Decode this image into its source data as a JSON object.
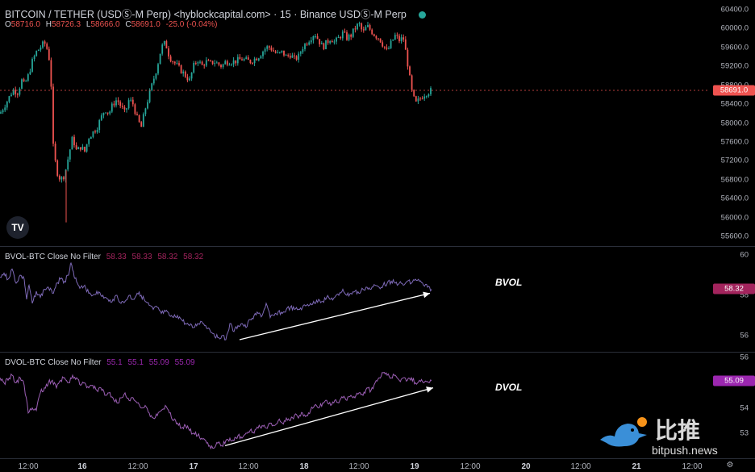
{
  "header": {
    "symbol": "BITCOIN / TETHER (USDⓈ-M Perp) <hyblockcapital.com> · 15 · Binance USDⓈ-M Perp",
    "ohlc": {
      "o_label": "O",
      "o": "58716.0",
      "h_label": "H",
      "h": "58726.3",
      "l_label": "L",
      "l": "58666.0",
      "c_label": "C",
      "c": "58691.0",
      "chg": "-25.0 (-0.04%)"
    }
  },
  "colors": {
    "up": "#26a69a",
    "down": "#ef5350",
    "bvol": "#7e6ab8",
    "dvol": "#9c5fb5",
    "price_line": "#ef5350",
    "bvol_tag": "#a3245d",
    "dvol_tag": "#9c27b0",
    "arrow": "#ffffff"
  },
  "icons": {
    "logo": "tradingview-logo-icon",
    "gear": "settings-icon",
    "bird": "bitpush-bird-icon"
  },
  "logo_text": "TV",
  "watermark": {
    "cn": "比推",
    "en": "bitpush.news"
  },
  "chart_data": [
    {
      "type": "candlestick",
      "title": "BITCOIN / TETHER (USDⓈ-M Perp) 15",
      "ylim": [
        55400,
        60600
      ],
      "yticks": [
        60400,
        60000,
        59600,
        59200,
        58800,
        58400,
        58000,
        57600,
        57200,
        56800,
        56400,
        56000,
        55600
      ],
      "last_price": 58691.0,
      "last_price_label": "58691.0",
      "close_path": {
        "x": [
          0,
          5,
          10,
          16,
          22,
          27,
          30,
          35,
          40,
          45,
          50,
          55,
          60,
          63,
          66,
          70,
          75,
          80,
          85,
          90,
          95,
          100,
          105,
          110,
          115,
          120,
          125,
          130,
          135,
          140,
          145,
          150,
          155,
          160,
          165,
          170,
          175,
          180,
          185,
          190,
          195,
          200,
          205,
          210,
          215,
          220,
          225,
          230,
          235,
          240,
          245,
          250,
          255,
          260,
          265,
          270,
          275,
          280,
          290,
          300,
          310,
          320,
          325,
          330,
          335,
          340,
          345,
          350,
          355,
          360,
          365,
          370,
          375,
          380,
          385,
          390,
          395,
          400,
          405,
          410,
          415,
          420,
          425,
          430,
          435,
          440,
          445,
          450,
          455,
          460,
          465,
          470,
          475,
          480,
          485,
          490,
          495,
          500,
          505,
          510,
          515,
          520,
          525,
          530,
          535
        ],
        "close": [
          58200,
          58350,
          58500,
          58700,
          58650,
          58900,
          58800,
          59000,
          59300,
          59500,
          59600,
          59700,
          59500,
          59000,
          57500,
          57000,
          56800,
          56900,
          57300,
          57700,
          57400,
          57500,
          57400,
          57700,
          57800,
          57900,
          58100,
          58300,
          58200,
          58400,
          58500,
          58350,
          58200,
          58500,
          58400,
          58100,
          57900,
          58300,
          58600,
          58900,
          59200,
          59600,
          59700,
          59400,
          59300,
          59200,
          59100,
          59000,
          58900,
          59200,
          59350,
          59200,
          59300,
          59250,
          59300,
          59250,
          59200,
          59300,
          59300,
          59350,
          59300,
          59400,
          59500,
          59600,
          59600,
          59500,
          59450,
          59500,
          59400,
          59450,
          59350,
          59400,
          59600,
          59700,
          59800,
          59900,
          59750,
          59600,
          59700,
          59800,
          59700,
          59800,
          59900,
          59800,
          59850,
          60000,
          60100,
          59900,
          60050,
          59950,
          59850,
          59800,
          59650,
          59500,
          59700,
          59850,
          59750,
          59800,
          59300,
          58700,
          58400,
          58500,
          58600,
          58650,
          58691
        ]
      },
      "low_wick": {
        "x": 82,
        "low": 55900
      }
    },
    {
      "type": "line",
      "title": "BVOL-BTC Close No Filter",
      "values_label": [
        "58.33",
        "58.33",
        "58.32",
        "58.32"
      ],
      "ylim": [
        55.2,
        60.4
      ],
      "yticks": [
        60,
        58,
        56
      ],
      "tick_labels": [
        "60",
        "58",
        "56"
      ],
      "last_value": 58.32,
      "last_label": "58.32",
      "annotation": "BVOL",
      "series": {
        "x": [
          0,
          5,
          10,
          15,
          20,
          25,
          30,
          33,
          36,
          40,
          45,
          50,
          55,
          60,
          65,
          70,
          75,
          80,
          85,
          88,
          92,
          96,
          100,
          105,
          110,
          115,
          120,
          125,
          130,
          135,
          140,
          145,
          150,
          155,
          160,
          165,
          170,
          175,
          180,
          185,
          190,
          195,
          200,
          205,
          210,
          215,
          220,
          225,
          230,
          235,
          240,
          245,
          250,
          255,
          260,
          265,
          270,
          275,
          280,
          285,
          290,
          295,
          300,
          305,
          310,
          315,
          320,
          325,
          330,
          335,
          340,
          345,
          350,
          355,
          360,
          365,
          370,
          375,
          380,
          385,
          390,
          395,
          400,
          405,
          410,
          415,
          420,
          425,
          430,
          435,
          440,
          445,
          450,
          455,
          460,
          465,
          470,
          475,
          480,
          485,
          490,
          495,
          500,
          505,
          510,
          515,
          520,
          525,
          530,
          535
        ],
        "y": [
          58.9,
          59.1,
          58.8,
          59.3,
          58.6,
          59.0,
          58.8,
          57.8,
          58.5,
          57.6,
          58.2,
          57.9,
          58.3,
          58.4,
          58.1,
          58.6,
          58.8,
          58.7,
          59.0,
          59.6,
          58.9,
          58.6,
          58.4,
          58.5,
          58.1,
          58.0,
          58.2,
          58.0,
          57.9,
          57.7,
          57.8,
          58.0,
          57.6,
          57.7,
          58.0,
          57.8,
          58.1,
          58.0,
          57.7,
          57.5,
          57.3,
          57.4,
          57.1,
          57.2,
          57.0,
          56.9,
          57.0,
          56.8,
          56.6,
          56.5,
          56.4,
          56.6,
          56.7,
          56.5,
          56.3,
          56.1,
          55.9,
          56.0,
          55.8,
          56.6,
          56.2,
          56.5,
          56.6,
          56.4,
          56.8,
          57.0,
          57.1,
          57.0,
          57.6,
          56.9,
          57.0,
          57.2,
          57.1,
          57.3,
          57.4,
          57.3,
          57.3,
          57.4,
          57.5,
          57.6,
          57.6,
          57.8,
          57.7,
          57.9,
          57.8,
          57.9,
          58.0,
          58.3,
          58.0,
          58.1,
          58.2,
          58.1,
          58.3,
          58.4,
          58.3,
          58.5,
          58.4,
          58.5,
          58.6,
          58.7,
          58.6,
          58.6,
          58.5,
          58.7,
          58.6,
          58.8,
          58.7,
          58.5,
          58.4,
          58.3
        ]
      },
      "trend_arrow": {
        "x": [
          297,
          533
        ],
        "y": [
          55.8,
          58.1
        ]
      }
    },
    {
      "type": "line",
      "title": "DVOL-BTC Close No Filter",
      "values_label": [
        "55.1",
        "55.1",
        "55.09",
        "55.09"
      ],
      "ylim": [
        52,
        56.2
      ],
      "yticks": [
        56,
        55,
        54,
        53
      ],
      "tick_labels": [
        "56",
        "55",
        "54",
        "53"
      ],
      "last_value": 55.09,
      "last_label": "55.09",
      "annotation": "DVOL",
      "series": {
        "x": [
          0,
          5,
          10,
          15,
          20,
          25,
          30,
          35,
          40,
          45,
          50,
          55,
          60,
          65,
          70,
          75,
          80,
          85,
          90,
          95,
          100,
          105,
          110,
          115,
          120,
          125,
          130,
          135,
          140,
          145,
          150,
          155,
          160,
          165,
          170,
          175,
          180,
          185,
          190,
          195,
          200,
          205,
          210,
          215,
          220,
          225,
          230,
          235,
          240,
          245,
          250,
          255,
          260,
          265,
          270,
          275,
          280,
          285,
          290,
          295,
          300,
          305,
          310,
          315,
          320,
          325,
          330,
          335,
          340,
          345,
          350,
          355,
          360,
          365,
          370,
          375,
          380,
          385,
          390,
          395,
          400,
          405,
          410,
          415,
          420,
          425,
          430,
          435,
          440,
          445,
          450,
          455,
          460,
          465,
          470,
          475,
          480,
          485,
          490,
          495,
          500,
          505,
          510,
          515,
          520,
          525,
          530,
          535
        ],
        "y": [
          55.2,
          55.0,
          55.1,
          55.3,
          55.0,
          55.2,
          54.9,
          53.8,
          54.0,
          53.9,
          54.6,
          54.8,
          55.0,
          55.1,
          54.8,
          55.1,
          55.2,
          55.0,
          55.3,
          55.2,
          54.9,
          55.0,
          54.8,
          54.9,
          54.7,
          54.8,
          54.5,
          54.6,
          54.4,
          54.2,
          54.4,
          54.6,
          54.3,
          54.4,
          54.2,
          54.0,
          54.1,
          53.8,
          53.6,
          53.7,
          53.9,
          54.1,
          53.8,
          53.5,
          53.4,
          53.2,
          53.3,
          53.1,
          53.0,
          52.9,
          52.8,
          52.7,
          52.5,
          52.4,
          52.6,
          52.5,
          52.7,
          52.8,
          52.7,
          52.9,
          52.8,
          53.0,
          53.1,
          53.0,
          53.2,
          53.3,
          53.2,
          53.4,
          53.3,
          53.5,
          53.4,
          53.6,
          53.5,
          53.7,
          53.6,
          53.8,
          53.7,
          53.9,
          54.1,
          54.0,
          54.2,
          54.3,
          54.1,
          54.3,
          54.2,
          54.4,
          54.3,
          54.5,
          54.4,
          54.6,
          54.5,
          54.8,
          54.7,
          55.0,
          55.2,
          55.4,
          55.3,
          55.2,
          55.3,
          55.1,
          55.2,
          55.1,
          55.2,
          55.0,
          55.1,
          55.0,
          55.05,
          55.09
        ]
      },
      "trend_arrow": {
        "x": [
          279,
          537
        ],
        "y": [
          52.5,
          54.8
        ]
      }
    }
  ],
  "time_axis": {
    "ticks": [
      {
        "label": "12:00",
        "x": 35,
        "bold": false
      },
      {
        "label": "16",
        "x": 102,
        "bold": true
      },
      {
        "label": "12:00",
        "x": 171,
        "bold": false
      },
      {
        "label": "17",
        "x": 240,
        "bold": true
      },
      {
        "label": "12:00",
        "x": 308,
        "bold": false
      },
      {
        "label": "18",
        "x": 377,
        "bold": true
      },
      {
        "label": "12:00",
        "x": 445,
        "bold": false
      },
      {
        "label": "19",
        "x": 514,
        "bold": true
      },
      {
        "label": "12:00",
        "x": 583,
        "bold": false
      },
      {
        "label": "20",
        "x": 652,
        "bold": true
      },
      {
        "label": "12:00",
        "x": 720,
        "bold": false
      },
      {
        "label": "21",
        "x": 789,
        "bold": true
      },
      {
        "label": "12:00",
        "x": 858,
        "bold": false
      }
    ]
  }
}
